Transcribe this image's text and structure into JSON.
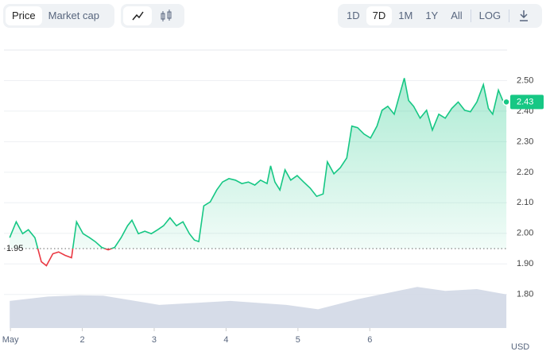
{
  "toolbar": {
    "views": [
      "Price",
      "Market cap"
    ],
    "ranges": [
      "1D",
      "7D",
      "1M",
      "1Y",
      "All"
    ],
    "log": "LOG"
  },
  "chart_data": {
    "type": "line",
    "baseline": 1.95,
    "current_label": "2.43",
    "y_unit": "USD",
    "x": [
      0.99,
      1.08,
      1.17,
      1.25,
      1.34,
      1.43,
      1.5,
      1.59,
      1.67,
      1.76,
      1.85,
      1.92,
      2.01,
      2.1,
      2.18,
      2.27,
      2.36,
      2.45,
      2.54,
      2.63,
      2.69,
      2.78,
      2.87,
      2.96,
      3.05,
      3.13,
      3.22,
      3.31,
      3.4,
      3.49,
      3.56,
      3.62,
      3.69,
      3.78,
      3.87,
      3.95,
      4.04,
      4.13,
      4.22,
      4.31,
      4.4,
      4.48,
      4.57,
      4.62,
      4.68,
      4.75,
      4.82,
      4.9,
      4.99,
      5.08,
      5.17,
      5.26,
      5.35,
      5.41,
      5.5,
      5.59,
      5.68,
      5.75,
      5.83,
      5.92,
      6.01,
      6.1,
      6.17,
      6.25,
      6.34,
      6.41,
      6.48,
      6.54,
      6.61,
      6.7,
      6.79,
      6.87,
      6.96,
      7.05,
      7.14,
      7.23,
      7.32,
      7.4,
      7.49,
      7.58,
      7.65,
      7.71,
      7.79,
      7.85,
      7.9
    ],
    "series": [
      {
        "name": "Price",
        "color": "#16c784",
        "below_color": "#ea3943",
        "values": [
          1.986,
          2.038,
          1.999,
          2.012,
          1.986,
          1.907,
          1.894,
          1.933,
          1.939,
          1.928,
          1.92,
          2.038,
          1.999,
          1.986,
          1.973,
          1.954,
          1.946,
          1.954,
          1.986,
          2.025,
          2.043,
          1.999,
          2.007,
          1.999,
          2.012,
          2.025,
          2.051,
          2.025,
          2.038,
          1.999,
          1.978,
          1.973,
          2.09,
          2.103,
          2.142,
          2.168,
          2.179,
          2.174,
          2.163,
          2.168,
          2.158,
          2.174,
          2.163,
          2.221,
          2.168,
          2.142,
          2.208,
          2.174,
          2.189,
          2.168,
          2.148,
          2.121,
          2.129,
          2.234,
          2.195,
          2.215,
          2.247,
          2.351,
          2.346,
          2.325,
          2.312,
          2.351,
          2.403,
          2.416,
          2.39,
          2.45,
          2.508,
          2.435,
          2.416,
          2.377,
          2.403,
          2.338,
          2.39,
          2.377,
          2.409,
          2.43,
          2.403,
          2.398,
          2.43,
          2.487,
          2.409,
          2.39,
          2.469,
          2.435,
          2.43
        ]
      },
      {
        "name": "Volume",
        "color": "#cfd6e4",
        "axis": "y2",
        "x": [
          0.99,
          1.52,
          1.96,
          2.29,
          3.07,
          4.06,
          4.84,
          5.28,
          5.83,
          6.39,
          6.66,
          7.05,
          7.49,
          7.9
        ],
        "values": [
          62,
          72,
          75,
          74,
          53,
          62,
          53,
          43,
          66,
          85,
          94,
          85,
          89,
          77
        ]
      }
    ],
    "xlim": [
      0.91,
      7.91
    ],
    "xticks": [
      {
        "value": 1,
        "label": "May"
      },
      2,
      3,
      4,
      5,
      6
    ],
    "ylim": [
      1.69,
      2.6
    ],
    "yticks": [
      {
        "value": 1.8,
        "label": "1.80"
      },
      {
        "value": 1.9,
        "label": "1.90"
      },
      {
        "value": 2,
        "label": "2.00"
      },
      {
        "value": 2.1,
        "label": "2.10"
      },
      {
        "value": 2.2,
        "label": "2.20"
      },
      {
        "value": 2.3,
        "label": "2.30"
      },
      {
        "value": 2.4,
        "label": "2.40"
      },
      {
        "value": 2.5,
        "label": "2.50"
      }
    ],
    "y2lim": [
      0,
      100
    ],
    "grid": true
  }
}
